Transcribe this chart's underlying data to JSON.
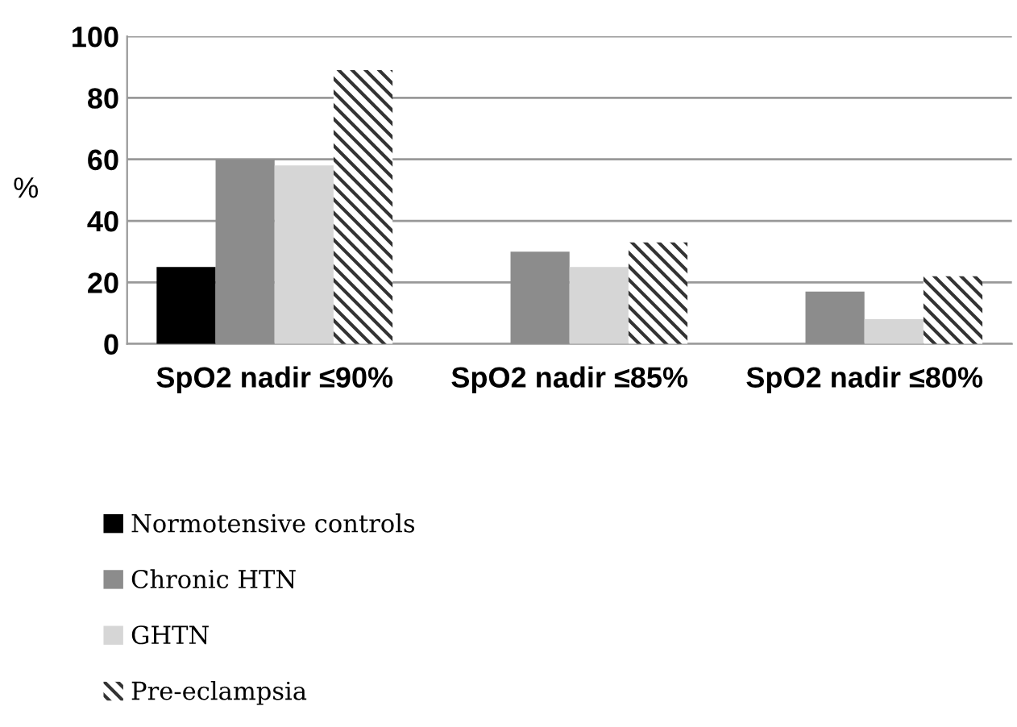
{
  "chart_data": {
    "type": "bar",
    "ylabel": "%",
    "categories": [
      "SpO2 nadir ≤90%",
      "SpO2 nadir ≤85%",
      "SpO2 nadir ≤80%"
    ],
    "series": [
      {
        "name": "Normotensive controls",
        "color": "#000000",
        "values": [
          25,
          0,
          0
        ]
      },
      {
        "name": "Chronic HTN",
        "color": "#8c8c8c",
        "values": [
          60,
          30,
          17
        ]
      },
      {
        "name": "GHTN",
        "color": "#d6d6d6",
        "values": [
          58,
          25,
          8
        ]
      },
      {
        "name": "Pre-eclampsia",
        "color": "#ffffff",
        "values": [
          89,
          33,
          22
        ]
      }
    ],
    "ylim": [
      0,
      100
    ],
    "yticks": [
      0,
      20,
      40,
      60,
      80,
      100
    ],
    "grid": "y",
    "legend": "bottom left"
  }
}
